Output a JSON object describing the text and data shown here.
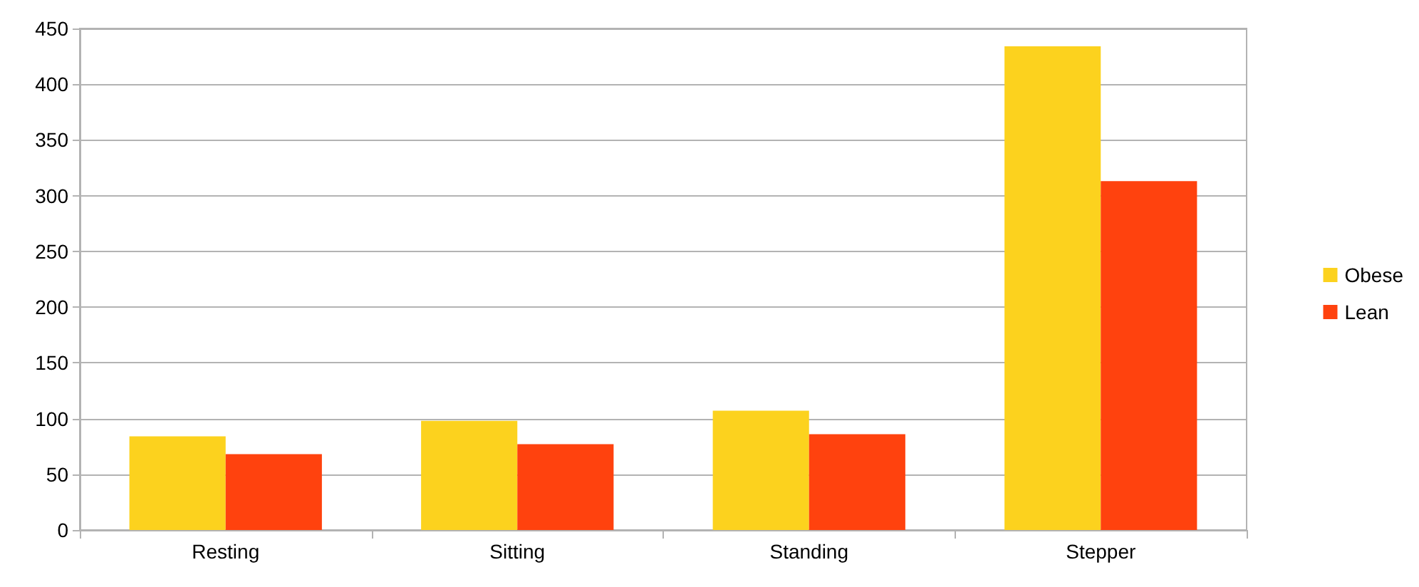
{
  "chart_data": {
    "type": "bar",
    "categories": [
      "Resting",
      "Sitting",
      "Standing",
      "Stepper"
    ],
    "series": [
      {
        "name": "Obese",
        "color": "#fcd21e",
        "values": [
          84,
          98,
          107,
          434
        ]
      },
      {
        "name": "Lean",
        "color": "#ff420e",
        "values": [
          68,
          77,
          86,
          313
        ]
      }
    ],
    "ylim": [
      0,
      450
    ],
    "yticks": [
      0,
      50,
      100,
      150,
      200,
      250,
      300,
      350,
      400,
      450
    ],
    "grid": "y",
    "legend": "right"
  }
}
